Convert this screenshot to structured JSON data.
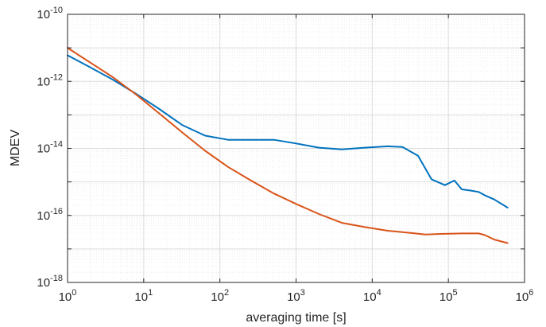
{
  "chart_data": {
    "type": "line",
    "xlabel": "averaging time [s]",
    "ylabel": "MDEV",
    "xscale": "log",
    "yscale": "log",
    "xlim": [
      1,
      1000000
    ],
    "ylim": [
      1e-18,
      1e-10
    ],
    "grid": true,
    "minor_grid": true,
    "x_ticks": [
      {
        "base": "10",
        "exp": "0",
        "value": 1
      },
      {
        "base": "10",
        "exp": "1",
        "value": 10
      },
      {
        "base": "10",
        "exp": "2",
        "value": 100
      },
      {
        "base": "10",
        "exp": "3",
        "value": 1000
      },
      {
        "base": "10",
        "exp": "4",
        "value": 10000
      },
      {
        "base": "10",
        "exp": "5",
        "value": 100000
      },
      {
        "base": "10",
        "exp": "6",
        "value": 1000000
      }
    ],
    "y_ticks": [
      {
        "base": "10",
        "exp": "-18",
        "value": 1e-18
      },
      {
        "base": "10",
        "exp": "-16",
        "value": 1e-16
      },
      {
        "base": "10",
        "exp": "-14",
        "value": 1e-14
      },
      {
        "base": "10",
        "exp": "-12",
        "value": 1e-12
      },
      {
        "base": "10",
        "exp": "-10",
        "value": 1e-10
      }
    ],
    "series": [
      {
        "color": "#0072BD",
        "x": [
          1,
          2,
          4,
          8,
          16,
          32,
          64,
          128,
          256,
          512,
          1000,
          2000,
          4000,
          8000,
          16000,
          25000,
          40000,
          60000,
          90000,
          120000,
          150000,
          200000,
          250000,
          300000,
          400000,
          600000
        ],
        "y": [
          6e-12,
          2.6e-12,
          1.1e-12,
          4.2e-13,
          1.5e-13,
          5e-14,
          2.4e-14,
          1.8e-14,
          1.8e-14,
          1.8e-14,
          1.4e-14,
          1.05e-14,
          9.3e-15,
          1.05e-14,
          1.15e-14,
          1.1e-14,
          6e-15,
          1.2e-15,
          8e-16,
          1.1e-15,
          6e-16,
          5.5e-16,
          5e-16,
          4e-16,
          3e-16,
          1.7e-16
        ]
      },
      {
        "color": "#D95319",
        "x": [
          1,
          2,
          4,
          8,
          16,
          32,
          64,
          128,
          256,
          512,
          1000,
          2000,
          4000,
          8000,
          16000,
          32000,
          50000,
          80000,
          150000,
          250000,
          300000,
          400000,
          600000
        ],
        "y": [
          1e-11,
          3.6e-12,
          1.3e-12,
          4e-13,
          1.1e-13,
          3e-14,
          8.5e-15,
          2.8e-15,
          1.1e-15,
          4.5e-16,
          2.2e-16,
          1.1e-16,
          6e-17,
          4.5e-17,
          3.5e-17,
          3e-17,
          2.7e-17,
          2.8e-17,
          2.9e-17,
          2.9e-17,
          2.6e-17,
          1.9e-17,
          1.5e-17
        ]
      }
    ]
  }
}
